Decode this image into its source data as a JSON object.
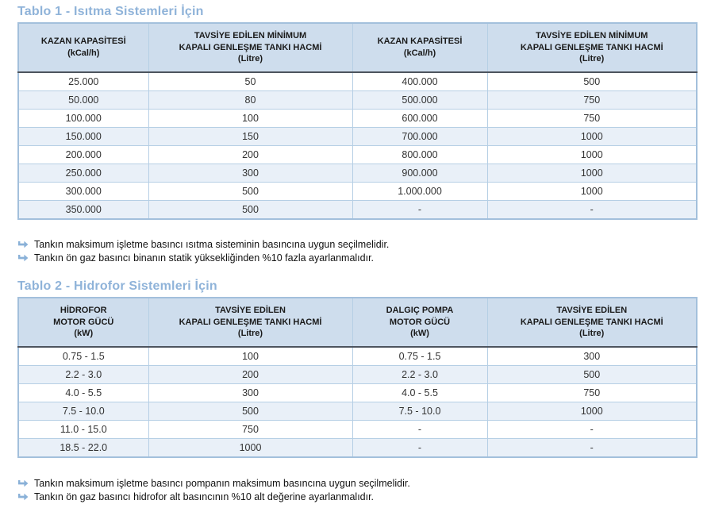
{
  "accent_color": "#8fb3d9",
  "header_bg_color": "#cedded",
  "alt_row_color": "#e9f0f8",
  "border_color": "#b6cfe5",
  "table1": {
    "title": "Tablo 1 - Isıtma Sistemleri İçin",
    "headers": [
      "KAZAN KAPASİTESİ\n(kCal/h)",
      "TAVSİYE EDİLEN MİNİMUM\nKAPALI GENLEŞME TANKI HACMİ\n(Litre)",
      "KAZAN KAPASİTESİ\n(kCal/h)",
      "TAVSİYE EDİLEN MİNİMUM\nKAPALI GENLEŞME TANKI HACMİ\n(Litre)"
    ],
    "rows": [
      [
        "25.000",
        "50",
        "400.000",
        "500"
      ],
      [
        "50.000",
        "80",
        "500.000",
        "750"
      ],
      [
        "100.000",
        "100",
        "600.000",
        "750"
      ],
      [
        "150.000",
        "150",
        "700.000",
        "1000"
      ],
      [
        "200.000",
        "200",
        "800.000",
        "1000"
      ],
      [
        "250.000",
        "300",
        "900.000",
        "1000"
      ],
      [
        "300.000",
        "500",
        "1.000.000",
        "1000"
      ],
      [
        "350.000",
        "500",
        "-",
        "-"
      ]
    ],
    "notes": [
      "Tankın maksimum işletme basıncı ısıtma sisteminin basıncına uygun seçilmelidir.",
      "Tankın ön gaz basıncı binanın statik yüksekliğinden %10 fazla ayarlanmalıdır."
    ]
  },
  "table2": {
    "title": "Tablo 2 - Hidrofor Sistemleri İçin",
    "headers": [
      "HİDROFOR\nMOTOR GÜCÜ\n(kW)",
      "TAVSİYE EDİLEN\nKAPALI GENLEŞME TANKI HACMİ\n(Litre)",
      "DALGIÇ POMPA\nMOTOR GÜCÜ\n(kW)",
      "TAVSİYE EDİLEN\nKAPALI GENLEŞME TANKI HACMİ\n(Litre)"
    ],
    "rows": [
      [
        "0.75 - 1.5",
        "100",
        "0.75 - 1.5",
        "300"
      ],
      [
        "2.2 - 3.0",
        "200",
        "2.2 - 3.0",
        "500"
      ],
      [
        "4.0 - 5.5",
        "300",
        "4.0 - 5.5",
        "750"
      ],
      [
        "7.5 - 10.0",
        "500",
        "7.5 - 10.0",
        "1000"
      ],
      [
        "11.0 - 15.0",
        "750",
        "-",
        "-"
      ],
      [
        "18.5 - 22.0",
        "1000",
        "-",
        "-"
      ]
    ],
    "notes": [
      "Tankın maksimum işletme basıncı pompanın maksimum basıncına uygun seçilmelidir.",
      "Tankın ön gaz basıncı hidrofor alt basıncının %10 alt değerine ayarlanmalıdır."
    ]
  }
}
